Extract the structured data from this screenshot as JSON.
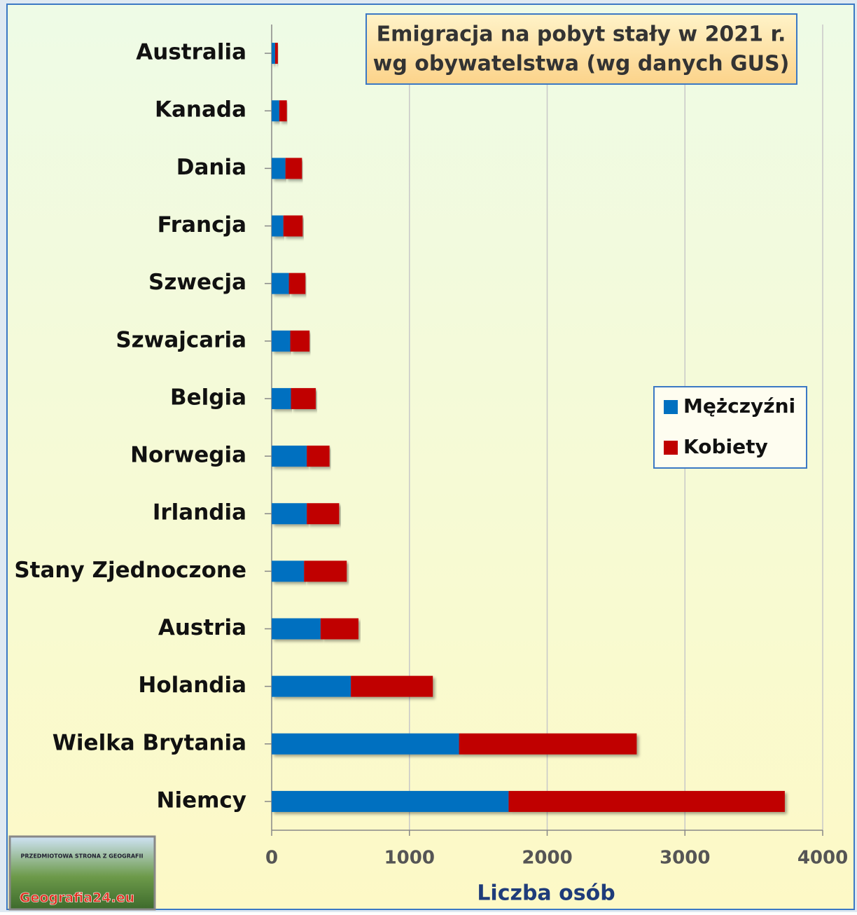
{
  "chart_data": {
    "type": "stacked-barh",
    "title": [
      "Emigracja na pobyt stały w 2021 r.",
      "wg obywatelstwa (wg danych GUS)"
    ],
    "xlabel": "Liczba osób",
    "categories": [
      "Australia",
      "Kanada",
      "Dania",
      "Francja",
      "Szwecja",
      "Szwajcaria",
      "Belgia",
      "Norwegia",
      "Irlandia",
      "Stany Zjednoczone",
      "Austria",
      "Holandia",
      "Wielka Brytania",
      "Niemcy"
    ],
    "series": [
      {
        "name": "Mężczyźni",
        "color": "#0070c0",
        "values": [
          25,
          55,
          100,
          85,
          125,
          135,
          140,
          255,
          255,
          235,
          355,
          575,
          1360,
          1720
        ]
      },
      {
        "name": "Kobiety",
        "color": "#c00000",
        "values": [
          20,
          55,
          120,
          140,
          120,
          140,
          180,
          165,
          235,
          310,
          275,
          595,
          1290,
          2005
        ]
      }
    ],
    "xlim": [
      0,
      4000
    ],
    "xticks": [
      0,
      1000,
      2000,
      3000,
      4000
    ],
    "grid": true,
    "legend": "right",
    "logo": [
      "PRZEDMIOTOWA STRONA Z GEOGRAFII",
      "Geografia24.eu"
    ]
  }
}
